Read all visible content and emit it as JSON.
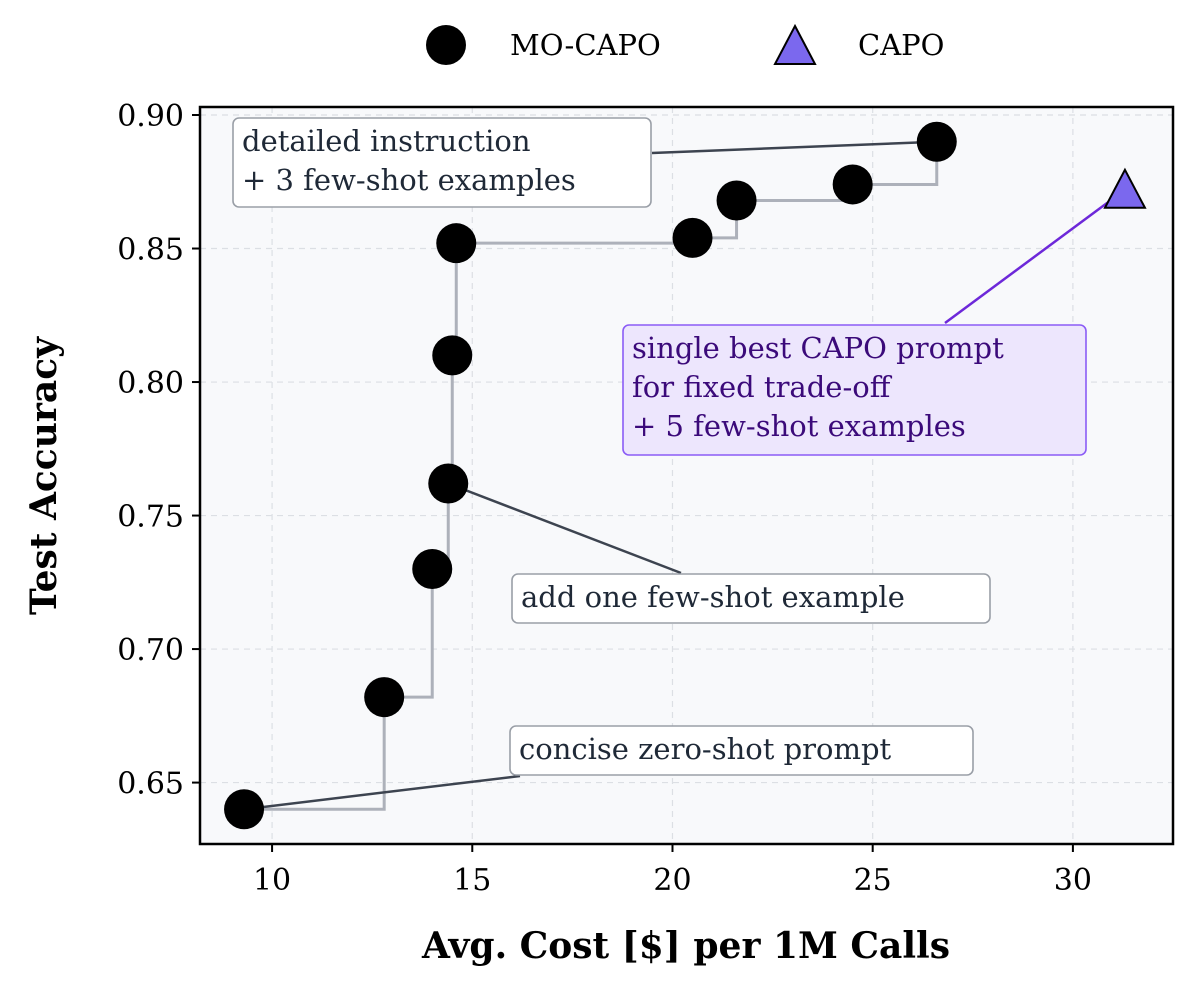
{
  "chart_data": {
    "type": "scatter",
    "xlabel": "Avg. Cost [$] per 1M Calls",
    "ylabel": "Test Accuracy",
    "xlim": [
      8.2,
      32.5
    ],
    "ylim": [
      0.627,
      0.903
    ],
    "xticks": [
      10,
      15,
      20,
      25,
      30
    ],
    "yticks": [
      0.65,
      0.7,
      0.75,
      0.8,
      0.85,
      0.9
    ],
    "xtick_labels": [
      "10",
      "15",
      "20",
      "25",
      "30"
    ],
    "ytick_labels": [
      "0.65",
      "0.70",
      "0.75",
      "0.80",
      "0.85",
      "0.90"
    ],
    "grid": true,
    "legend_position": "top-center, above plot",
    "series": [
      {
        "name": "MO-CAPO",
        "marker": "circle",
        "color": "#000000",
        "step_line": true,
        "points": [
          {
            "x": 9.3,
            "y": 0.64
          },
          {
            "x": 12.8,
            "y": 0.682
          },
          {
            "x": 14.0,
            "y": 0.73
          },
          {
            "x": 14.4,
            "y": 0.762
          },
          {
            "x": 14.5,
            "y": 0.81
          },
          {
            "x": 14.6,
            "y": 0.852
          },
          {
            "x": 20.5,
            "y": 0.854
          },
          {
            "x": 21.6,
            "y": 0.868
          },
          {
            "x": 24.5,
            "y": 0.874
          },
          {
            "x": 26.6,
            "y": 0.89
          }
        ]
      },
      {
        "name": "CAPO",
        "marker": "triangle",
        "color": "#7b68ee",
        "points": [
          {
            "x": 31.3,
            "y": 0.872
          }
        ]
      }
    ],
    "annotations": [
      {
        "id": "detailed",
        "lines": [
          "detailed instruction",
          "+ 3 few-shot examples"
        ],
        "target": {
          "x": 26.6,
          "y": 0.89
        },
        "style": "gray"
      },
      {
        "id": "capo",
        "lines": [
          "single best CAPO prompt",
          "for fixed trade-off",
          "+ 5 few-shot examples"
        ],
        "target": {
          "x": 31.3,
          "y": 0.872
        },
        "style": "purple"
      },
      {
        "id": "add",
        "lines": [
          "add one few-shot example"
        ],
        "target": {
          "x": 14.4,
          "y": 0.762
        },
        "style": "gray"
      },
      {
        "id": "concise",
        "lines": [
          "concise zero-shot prompt"
        ],
        "target": {
          "x": 9.3,
          "y": 0.64
        },
        "style": "gray"
      }
    ]
  },
  "colors": {
    "plot_background": "#f8f9fb",
    "grid": "#dcdfe4",
    "step_line": "#adb1ba",
    "annotation_line": "#3d4450",
    "annotation_text": "#1f2937",
    "annotation_border": "#9a9fa7",
    "capo_fill": "#7b68ee",
    "capo_line": "#6d28d9",
    "capo_text": "#3b0a7a",
    "capo_box_fill": "#ede6fd",
    "capo_box_border": "#8b5cf6"
  }
}
